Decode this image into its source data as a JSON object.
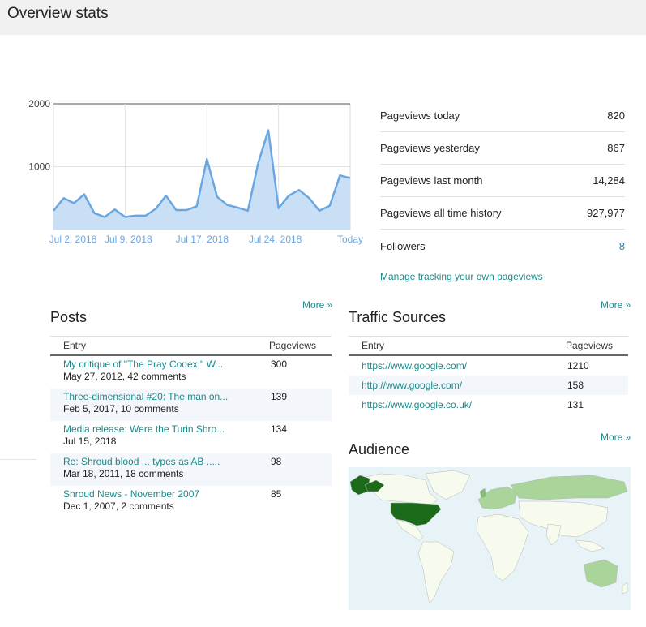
{
  "header": {
    "title": "Overview stats"
  },
  "chart_data": {
    "type": "area",
    "x_labels": [
      "Jul 2, 2018",
      "Jul 9, 2018",
      "Jul 17, 2018",
      "Jul 24, 2018",
      "Today"
    ],
    "y_ticks": [
      "2000",
      "1000"
    ],
    "ylim": [
      0,
      2000
    ],
    "values": [
      300,
      500,
      420,
      560,
      260,
      200,
      320,
      200,
      220,
      220,
      330,
      540,
      310,
      310,
      370,
      1120,
      520,
      390,
      350,
      300,
      1050,
      1580,
      340,
      540,
      630,
      500,
      300,
      380,
      860,
      820
    ],
    "series_color": "#6aa7e0",
    "fill_color": "#c9dff5",
    "grid": true
  },
  "stats": [
    {
      "label": "Pageviews today",
      "value": "820"
    },
    {
      "label": "Pageviews yesterday",
      "value": "867"
    },
    {
      "label": "Pageviews last month",
      "value": "14,284"
    },
    {
      "label": "Pageviews all time history",
      "value": "927,977"
    },
    {
      "label": "Followers",
      "value": "8"
    }
  ],
  "manage_link": "Manage tracking your own pageviews",
  "posts": {
    "title": "Posts",
    "more": "More »",
    "headers": [
      "Entry",
      "Pageviews"
    ],
    "rows": [
      {
        "title": "My critique of \"The Pray Codex,\" W...",
        "meta": "May 27, 2012, 42 comments",
        "views": "300"
      },
      {
        "title": "Three-dimensional #20: The man on...",
        "meta": "Feb 5, 2017, 10 comments",
        "views": "139"
      },
      {
        "title": "Media release: Were the Turin Shro...",
        "meta": "Jul 15, 2018",
        "views": "134"
      },
      {
        "title": "Re: Shroud blood ... types as AB .....",
        "meta": "Mar 18, 2011, 18 comments",
        "views": "98"
      },
      {
        "title": "Shroud News - November 2007",
        "meta": "Dec 1, 2007, 2 comments",
        "views": "85"
      }
    ]
  },
  "traffic": {
    "title": "Traffic Sources",
    "more": "More »",
    "headers": [
      "Entry",
      "Pageviews"
    ],
    "rows": [
      {
        "source": "https://www.google.com/",
        "views": "1210"
      },
      {
        "source": "http://www.google.com/",
        "views": "158"
      },
      {
        "source": "https://www.google.co.uk/",
        "views": "131"
      }
    ]
  },
  "audience": {
    "title": "Audience",
    "more": "More »",
    "colors": {
      "ocean": "#e8f3f8",
      "land": "#f7fbee",
      "low": "#a9d49a",
      "mid": "#7fbf6f",
      "high": "#1b6b1b"
    }
  }
}
